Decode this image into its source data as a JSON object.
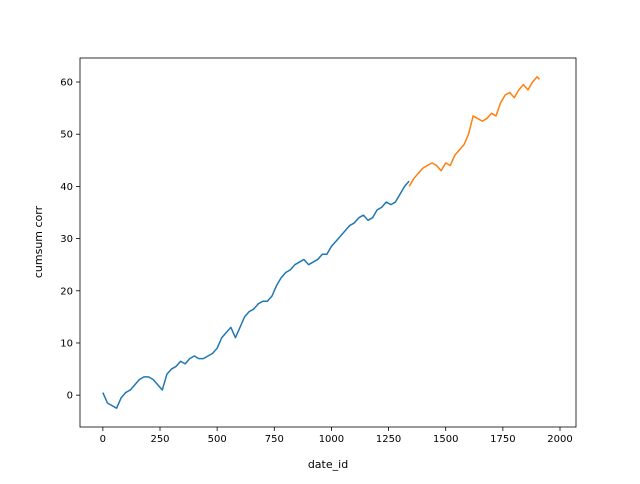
{
  "chart_data": {
    "type": "line",
    "xlabel": "date_id",
    "ylabel": "cumsum corr",
    "xlim": [
      -100,
      2070
    ],
    "ylim": [
      -6.1,
      64.6
    ],
    "xticks": [
      0,
      250,
      500,
      750,
      1000,
      1250,
      1500,
      1750,
      2000
    ],
    "yticks": [
      0,
      10,
      20,
      30,
      40,
      50,
      60
    ],
    "grid": false,
    "series": [
      {
        "color": "#1f77b4",
        "x": [
          0,
          20,
          40,
          60,
          80,
          100,
          120,
          140,
          160,
          180,
          200,
          220,
          240,
          260,
          280,
          300,
          320,
          340,
          360,
          380,
          400,
          420,
          440,
          460,
          480,
          500,
          520,
          540,
          560,
          580,
          600,
          620,
          640,
          660,
          680,
          700,
          720,
          740,
          760,
          780,
          800,
          820,
          840,
          860,
          880,
          900,
          920,
          940,
          960,
          980,
          1000,
          1020,
          1040,
          1060,
          1080,
          1100,
          1120,
          1140,
          1160,
          1180,
          1200,
          1220,
          1240,
          1260,
          1280,
          1300,
          1320,
          1340
        ],
        "values": [
          0.5,
          -1.5,
          -2,
          -2.5,
          -0.5,
          0.5,
          1,
          2,
          3,
          3.5,
          3.5,
          3,
          2,
          1,
          4,
          5,
          5.5,
          6.5,
          6,
          7,
          7.5,
          7,
          7,
          7.5,
          8,
          9,
          11,
          12,
          13,
          11,
          13,
          15,
          16,
          16.5,
          17.5,
          18,
          18,
          19,
          21,
          22.5,
          23.5,
          24,
          25,
          25.5,
          26,
          25,
          25.5,
          26,
          27,
          27,
          28.5,
          29.5,
          30.5,
          31.5,
          32.5,
          33,
          34,
          34.5,
          33.5,
          34,
          35.5,
          36,
          37,
          36.5,
          37,
          38.5,
          40,
          41
        ]
      },
      {
        "color": "#ff7f0e",
        "x": [
          1340,
          1360,
          1380,
          1400,
          1420,
          1440,
          1460,
          1480,
          1500,
          1520,
          1540,
          1560,
          1580,
          1600,
          1620,
          1640,
          1660,
          1680,
          1700,
          1720,
          1740,
          1760,
          1780,
          1800,
          1820,
          1840,
          1860,
          1880,
          1900,
          1910
        ],
        "values": [
          40,
          41.5,
          42.5,
          43.5,
          44,
          44.5,
          44,
          43,
          44.5,
          44,
          46,
          47,
          48,
          50,
          53.5,
          53,
          52.5,
          53,
          54,
          53.5,
          56,
          57.5,
          58,
          57,
          58.5,
          59.5,
          58.5,
          60,
          61,
          60.5
        ]
      }
    ]
  }
}
